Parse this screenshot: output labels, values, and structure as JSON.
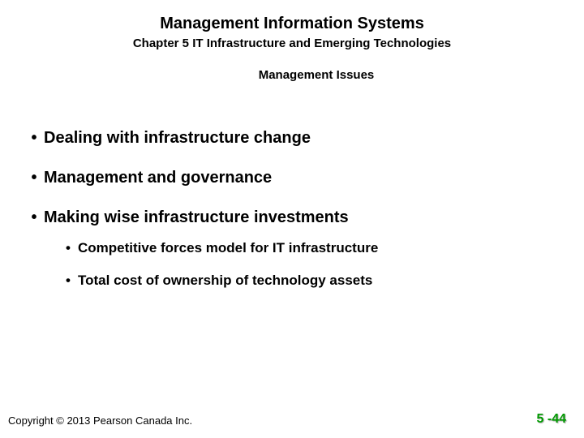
{
  "header": {
    "title": "Management Information Systems",
    "chapter": "Chapter 5 IT Infrastructure and Emerging Technologies",
    "section": "Management Issues"
  },
  "bullets": {
    "b1": "Dealing with infrastructure change",
    "b2": "Management and governance",
    "b3": "Making wise infrastructure investments",
    "b3_1": "Competitive forces model for IT infrastructure",
    "b3_2": "Total cost of ownership of technology assets"
  },
  "footer": {
    "copyright": "Copyright © 2013 Pearson Canada Inc.",
    "pagenum": "5 -44"
  },
  "colors": {
    "text": "#000000",
    "accent": "#009a00",
    "background": "#ffffff"
  }
}
